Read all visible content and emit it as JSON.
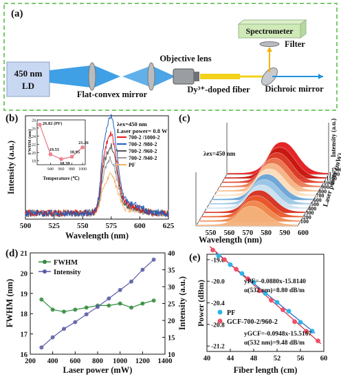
{
  "panel_a": {
    "tag": "(a)",
    "source_label": "450 nm\nLD",
    "lens_label": "Flat-convex mirror",
    "objective_label": "Objective lens",
    "fiber_label": "Dy³⁺-doped fiber",
    "dichroic_label": "Dichroic mirror",
    "spectrometer_label": "Spectrometer",
    "filter_label": "Filter",
    "colors": {
      "frame": "#7bc96f",
      "beam": "#1f8fe0",
      "spectrometer": "#cfe9b8",
      "fiber": "#f2d21a"
    }
  },
  "chart_data": [
    {
      "id": "b",
      "tag": "(b)",
      "type": "line",
      "xlabel": "Wavelength (nm)",
      "ylabel": "Intensity (a.u.)",
      "xlim": [
        500,
        625
      ],
      "xticks": [
        500,
        525,
        550,
        575,
        600,
        625
      ],
      "annotation": "λex=450 nm",
      "annotation2": "Laser power= 0.8 W",
      "series": [
        {
          "name": "700-2 /1000-2",
          "color": "#e31a1c",
          "peak": 0.78
        },
        {
          "name": "700-2 /980-2",
          "color": "#1f5fc0",
          "peak": 0.95
        },
        {
          "name": "700-2 /960-2",
          "color": "#555555",
          "peak": 0.66
        },
        {
          "name": "700-2 /940-2",
          "color": "#999999",
          "peak": 0.53
        },
        {
          "name": "PF",
          "color": "#f4b26a",
          "peak": 0.38
        }
      ],
      "inset": {
        "type": "line",
        "xlabel": "Temperature (℃)",
        "ylabel": "FWHM (nm)",
        "x": [
          920,
          940,
          960,
          980,
          1000
        ],
        "y": [
          26.82,
          19.55,
          18.39,
          18.95,
          21.26
        ],
        "labels": [
          "26.82 (PF)",
          "19.55",
          "18.39",
          "18.95",
          "21.26"
        ],
        "xticks": [
          940,
          960,
          980,
          1000
        ],
        "yticks": [
          18,
          20,
          22,
          24,
          26,
          28
        ],
        "ylim": [
          17,
          28
        ],
        "xlim": [
          915,
          1005
        ]
      }
    },
    {
      "id": "c",
      "tag": "(c)",
      "type": "area",
      "xlabel": "Wavelength (nm)",
      "zlabel": "Laser power (mW)",
      "ylabel": "Intensity (a.u.)",
      "annotation": "λex=450 nm",
      "xticks": [
        550,
        560,
        570,
        580,
        590,
        600
      ],
      "powers": [
        100,
        200,
        300,
        400,
        500,
        600,
        700,
        800,
        900,
        1000,
        1100,
        1200,
        1300
      ],
      "colors": [
        "#f5b07a",
        "#f08c50",
        "#e95a2c",
        "#d7301f",
        "#cfe3f0",
        "#9ec8e6",
        "#6aa5d8",
        "#fde1c2",
        "#f7b98a",
        "#ea7b55",
        "#de3d2a",
        "#c7180f",
        "#e41a1c"
      ]
    },
    {
      "id": "d",
      "tag": "(d)",
      "type": "line",
      "xlabel": "Laser power (mW)",
      "ylabel": "FWHM (nm)",
      "y2label": "Intensity (a.u.)",
      "xlim": [
        200,
        1400
      ],
      "ylim": [
        16,
        21
      ],
      "y2lim": [
        10,
        40
      ],
      "xticks": [
        200,
        400,
        600,
        800,
        1000,
        1200,
        1400
      ],
      "yticks": [
        16,
        17,
        18,
        19,
        20,
        21
      ],
      "y2ticks": [
        10,
        15,
        20,
        25,
        30,
        35,
        40
      ],
      "x": [
        300,
        400,
        500,
        600,
        700,
        800,
        900,
        1000,
        1100,
        1200,
        1300
      ],
      "series": [
        {
          "name": "FWHM",
          "axis": "left",
          "color": "#2e8b3c",
          "values": [
            18.7,
            18.2,
            18.1,
            18.2,
            18.3,
            18.4,
            18.4,
            18.5,
            18.3,
            18.5,
            18.65
          ]
        },
        {
          "name": "Intensity",
          "axis": "right",
          "color": "#5a5aa8",
          "values": [
            12.0,
            15.0,
            17.5,
            19.5,
            21.8,
            24.0,
            26.5,
            29.0,
            31.5,
            35.0,
            38.0
          ]
        }
      ]
    },
    {
      "id": "e",
      "tag": "(e)",
      "type": "scatter",
      "xlabel": "Fiber length (cm)",
      "ylabel": "Power (dBm)",
      "xlim": [
        40,
        60
      ],
      "ylim": [
        -21.3,
        -19.5
      ],
      "xticks": [
        40,
        44,
        48,
        52,
        56,
        60
      ],
      "yticks": [
        -21.2,
        -20.8,
        -20.4,
        -20.0,
        -19.6
      ],
      "eq_pf": "yPF=-0.0880x-15.8140",
      "alpha_pf": "α(532 nm)=8.80 dB/m",
      "eq_gcf": "yGCF=-0.0948x-15.5167",
      "alpha_gcf": "α(532 nm)=9.48 dB/m",
      "series": [
        {
          "name": "PF",
          "color": "#2fb4e8",
          "slope": -0.088,
          "intercept": -15.814,
          "x": [
            42,
            44,
            46,
            48,
            50,
            52,
            54,
            56,
            58
          ]
        },
        {
          "name": "GCF-700-2/960-2",
          "color": "#f0506a",
          "slope": -0.0948,
          "intercept": -15.5167,
          "x": [
            41,
            43,
            45,
            47,
            49,
            51,
            53,
            55,
            57,
            59
          ]
        }
      ]
    }
  ]
}
